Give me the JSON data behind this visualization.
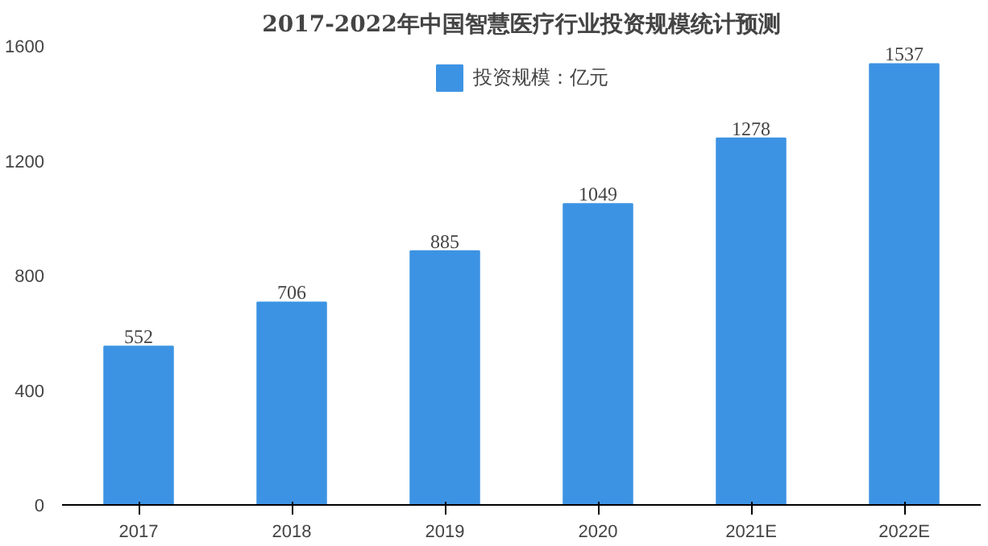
{
  "chart_data": {
    "type": "bar",
    "title": "2017-2022年中国智慧医疗行业投资规模统计预测",
    "categories": [
      "2017",
      "2018",
      "2019",
      "2020",
      "2021E",
      "2022E"
    ],
    "series": [
      {
        "name": "投资规模：亿元",
        "color": "#3d93e3",
        "values": [
          552,
          706,
          885,
          1049,
          1278,
          1537
        ]
      }
    ],
    "ylim": [
      0,
      1600
    ],
    "yticks": [
      0,
      400,
      800,
      1200,
      1600
    ],
    "grid": false,
    "legend": "top",
    "data_labels": true
  }
}
